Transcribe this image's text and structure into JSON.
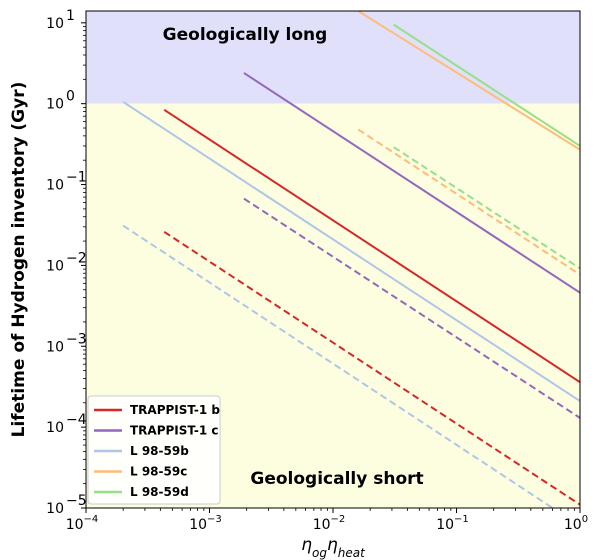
{
  "chart_data": {
    "type": "line",
    "title": "",
    "xlabel": "η_og η_heat",
    "ylabel": "Lifetime of Hydrogen inventory (Gyr)",
    "xscale": "log",
    "yscale": "log",
    "xlim": [
      0.0001,
      1
    ],
    "ylim": [
      1e-05,
      14
    ],
    "x_ticks": [
      {
        "value": 0.0001,
        "base": "10",
        "exp": "−4"
      },
      {
        "value": 0.001,
        "base": "10",
        "exp": "−3"
      },
      {
        "value": 0.01,
        "base": "10",
        "exp": "−2"
      },
      {
        "value": 0.1,
        "base": "10",
        "exp": "−1"
      },
      {
        "value": 1,
        "base": "10",
        "exp": "0"
      }
    ],
    "y_ticks": [
      {
        "value": 1e-05,
        "base": "10",
        "exp": "−5"
      },
      {
        "value": 0.0001,
        "base": "10",
        "exp": "−4"
      },
      {
        "value": 0.001,
        "base": "10",
        "exp": "−3"
      },
      {
        "value": 0.01,
        "base": "10",
        "exp": "−2"
      },
      {
        "value": 0.1,
        "base": "10",
        "exp": "−1"
      },
      {
        "value": 1,
        "base": "10",
        "exp": "0"
      },
      {
        "value": 10,
        "base": "10",
        "exp": "1"
      }
    ],
    "regions": [
      {
        "name": "Geologically long",
        "y_from": 1,
        "y_to": 14,
        "color": "#e0e0fa"
      },
      {
        "name": "Geologically short",
        "y_from": 1e-05,
        "y_to": 1,
        "color": "#fdfde0"
      }
    ],
    "series": [
      {
        "name": "TRAPPIST-1 b",
        "color": "#d62728",
        "style": "solid",
        "x": [
          0.00043,
          1
        ],
        "y": [
          0.84,
          0.00036
        ]
      },
      {
        "name": "TRAPPIST-1 b",
        "color": "#d62728",
        "style": "dashed",
        "x": [
          0.00043,
          1
        ],
        "y": [
          0.026,
          1.1e-05
        ]
      },
      {
        "name": "TRAPPIST-1 c",
        "color": "#9467bd",
        "style": "solid",
        "x": [
          0.0019,
          1
        ],
        "y": [
          2.4,
          0.0046
        ]
      },
      {
        "name": "TRAPPIST-1 c",
        "color": "#9467bd",
        "style": "dashed",
        "x": [
          0.0019,
          1
        ],
        "y": [
          0.067,
          0.00013
        ]
      },
      {
        "name": "L 98-59b",
        "color": "#aec7e8",
        "style": "solid",
        "x": [
          0.0002,
          1
        ],
        "y": [
          1.05,
          0.00021
        ]
      },
      {
        "name": "L 98-59b",
        "color": "#aec7e8",
        "style": "dashed",
        "x": [
          0.0002,
          0.6
        ],
        "y": [
          0.031,
          1e-05
        ]
      },
      {
        "name": "L 98-59c",
        "color": "#ffbb78",
        "style": "solid",
        "x": [
          0.016,
          1
        ],
        "y": [
          14,
          0.27
        ]
      },
      {
        "name": "L 98-59c",
        "color": "#ffbb78",
        "style": "dashed",
        "x": [
          0.016,
          1
        ],
        "y": [
          0.48,
          0.0077
        ]
      },
      {
        "name": "L 98-59d",
        "color": "#98df8a",
        "style": "solid",
        "x": [
          0.031,
          1
        ],
        "y": [
          9.5,
          0.3
        ]
      },
      {
        "name": "L 98-59d",
        "color": "#98df8a",
        "style": "dashed",
        "x": [
          0.031,
          1
        ],
        "y": [
          0.29,
          0.0092
        ]
      }
    ],
    "legend": {
      "location": "lower-left",
      "entries": [
        {
          "label": "TRAPPIST-1 b",
          "color": "#d62728"
        },
        {
          "label": "TRAPPIST-1 c",
          "color": "#9467bd"
        },
        {
          "label": "L 98-59b",
          "color": "#aec7e8"
        },
        {
          "label": "L 98-59c",
          "color": "#ffbb78"
        },
        {
          "label": "L 98-59d",
          "color": "#98df8a"
        }
      ]
    }
  }
}
